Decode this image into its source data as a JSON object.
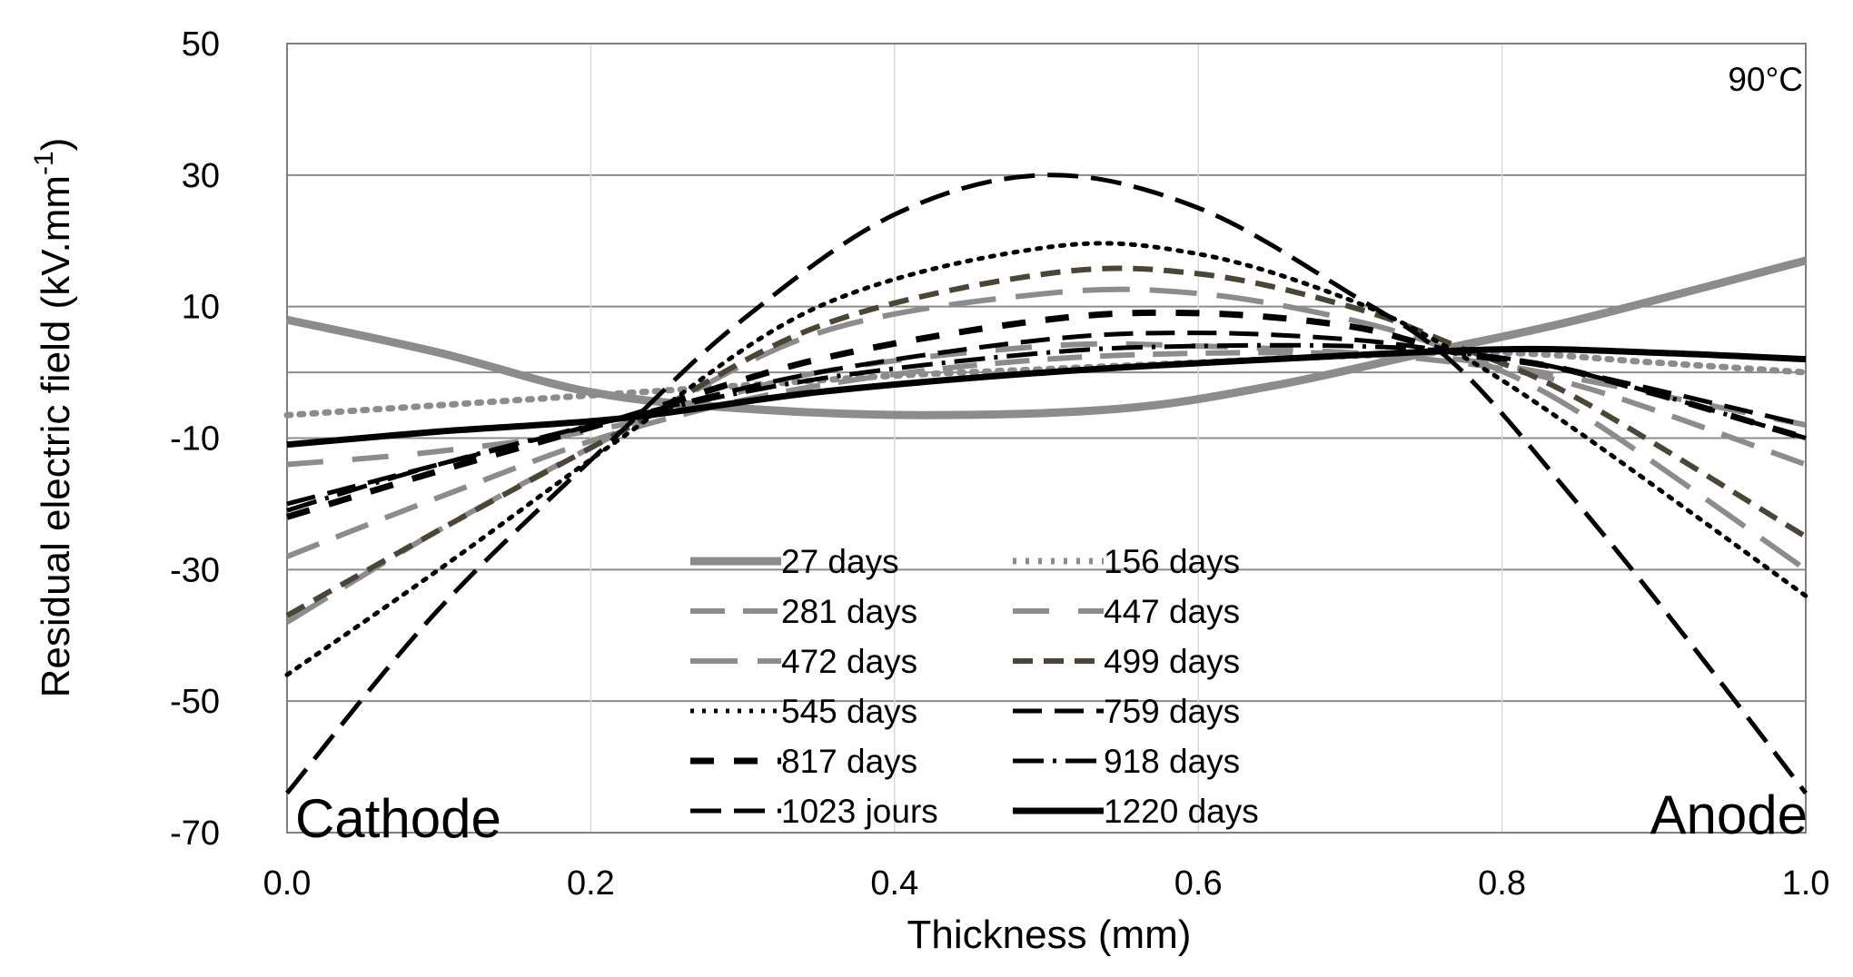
{
  "chart_data": {
    "type": "line",
    "title": "",
    "xlabel": "Thickness (mm)",
    "ylabel": "Residual electric field (kV.mm",
    "ylabel_superscript": "-1",
    "ylabel_close": ")",
    "xlim": [
      0,
      1.0
    ],
    "ylim": [
      -70,
      50
    ],
    "x_ticks": [
      0.0,
      0.2,
      0.4,
      0.6,
      0.8,
      1.0
    ],
    "x_tick_labels": [
      "0.0",
      "0.2",
      "0.4",
      "0.6",
      "0.8",
      "1.0"
    ],
    "y_ticks": [
      -70,
      -50,
      -30,
      -10,
      10,
      30,
      50
    ],
    "y_tick_labels": [
      "-70",
      "-50",
      "-30",
      "-10",
      "10",
      "30",
      "50"
    ],
    "extra_gridlines_y": [
      0
    ],
    "annotations": {
      "temperature": "90°C",
      "left": "Cathode",
      "right": "Anode"
    },
    "series": [
      {
        "name": "27 days",
        "x": [
          0,
          0.1,
          0.2,
          0.3,
          0.42,
          0.55,
          0.65,
          0.75,
          0.85,
          1.0
        ],
        "values": [
          8,
          3,
          -3,
          -5.5,
          -6.5,
          -5.5,
          -2,
          3,
          8,
          17
        ],
        "color": "#8c8c8c",
        "width": 9,
        "dash": ""
      },
      {
        "name": "156 days",
        "x": [
          0,
          0.1,
          0.2,
          0.3,
          0.4,
          0.5,
          0.6,
          0.7,
          0.8,
          0.9,
          1.0
        ],
        "values": [
          -6.5,
          -5,
          -3.5,
          -2,
          -0.5,
          0.5,
          1.5,
          2.5,
          3,
          1.5,
          0
        ],
        "color": "#8c8c8c",
        "width": 7,
        "dash": "4 10"
      },
      {
        "name": "281 days",
        "x": [
          0,
          0.1,
          0.22,
          0.35,
          0.5,
          0.65,
          0.75,
          0.85,
          1.0
        ],
        "values": [
          -28,
          -19,
          -9,
          -2,
          2,
          3,
          2,
          -2,
          -14
        ],
        "color": "#8c8c8c",
        "width": 6,
        "dash": "38 20"
      },
      {
        "name": "447 days",
        "x": [
          0,
          0.1,
          0.22,
          0.35,
          0.5,
          0.6,
          0.7,
          0.77,
          0.85,
          1.0
        ],
        "values": [
          -14,
          -12,
          -8,
          0,
          4,
          4,
          3,
          2,
          -1,
          -8
        ],
        "color": "#8c8c8c",
        "width": 6,
        "dash": "40 32"
      },
      {
        "name": "472 days",
        "x": [
          0,
          0.1,
          0.22,
          0.35,
          0.5,
          0.6,
          0.7,
          0.77,
          0.85,
          1.0
        ],
        "values": [
          -38,
          -24,
          -9,
          6,
          12,
          12,
          8,
          3,
          -6,
          -30
        ],
        "color": "#8c8c8c",
        "width": 6,
        "dash": "52 22"
      },
      {
        "name": "499 days",
        "x": [
          0,
          0.1,
          0.22,
          0.35,
          0.5,
          0.6,
          0.7,
          0.77,
          0.85,
          1.0
        ],
        "values": [
          -37,
          -24,
          -9,
          7,
          15,
          15,
          10,
          4,
          -4,
          -25
        ],
        "color": "#4a4535",
        "width": 6,
        "dash": "22 12"
      },
      {
        "name": "545 days",
        "x": [
          0,
          0.1,
          0.22,
          0.35,
          0.5,
          0.6,
          0.7,
          0.77,
          0.85,
          1.0
        ],
        "values": [
          -46,
          -30,
          -10,
          10,
          19,
          18,
          11,
          3,
          -9,
          -34
        ],
        "color": "#000000",
        "width": 5,
        "dash": "4 9"
      },
      {
        "name": "759 days",
        "x": [
          0,
          0.1,
          0.22,
          0.35,
          0.5,
          0.6,
          0.7,
          0.77,
          0.85,
          1.0
        ],
        "values": [
          -20,
          -14,
          -7,
          0,
          5,
          6,
          5,
          3,
          0,
          -8
        ],
        "color": "#000000",
        "width": 5,
        "dash": "32 14"
      },
      {
        "name": "817 days",
        "x": [
          0,
          0.1,
          0.22,
          0.35,
          0.5,
          0.6,
          0.7,
          0.77,
          0.85,
          1.0
        ],
        "values": [
          -22,
          -15,
          -7,
          2,
          8,
          9,
          7,
          3,
          0,
          -10
        ],
        "color": "#000000",
        "width": 7,
        "dash": "26 22"
      },
      {
        "name": "918 days",
        "x": [
          0,
          0.1,
          0.22,
          0.35,
          0.5,
          0.6,
          0.7,
          0.77,
          0.85,
          1.0
        ],
        "values": [
          -21,
          -14,
          -7,
          -1,
          3,
          4,
          4,
          3,
          0,
          -10
        ],
        "color": "#000000",
        "width": 5,
        "dash": "34 10 4 10"
      },
      {
        "name": "1023 jours",
        "x": [
          0,
          0.1,
          0.22,
          0.3,
          0.4,
          0.5,
          0.6,
          0.7,
          0.77,
          0.85,
          0.92,
          1.0
        ],
        "values": [
          -64,
          -36,
          -9,
          8,
          24,
          30,
          25,
          12,
          1,
          -20,
          -40,
          -64
        ],
        "color": "#000000",
        "width": 5,
        "dash": "34 14"
      },
      {
        "name": "1220 days",
        "x": [
          0,
          0.1,
          0.22,
          0.35,
          0.5,
          0.65,
          0.8,
          0.9,
          1.0
        ],
        "values": [
          -11,
          -9,
          -7,
          -3,
          0,
          2,
          3.5,
          3,
          2
        ],
        "color": "#000000",
        "width": 7,
        "dash": ""
      }
    ]
  }
}
